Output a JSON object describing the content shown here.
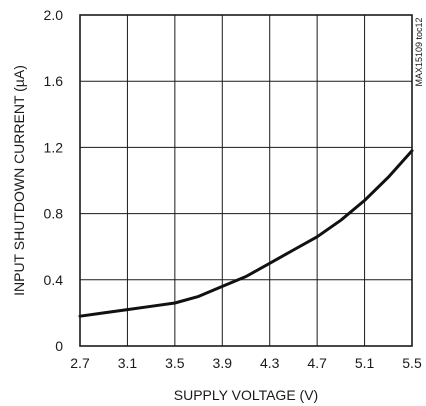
{
  "chart_data": {
    "type": "line",
    "title": "",
    "xlabel": "SUPPLY VOLTAGE (V)",
    "ylabel": "INPUT SHUTDOWN CURRENT (µA)",
    "side_note": "MAX15109 toc12",
    "xlim": [
      2.7,
      5.5
    ],
    "ylim": [
      0,
      2.0
    ],
    "x_ticks": [
      "2.7",
      "3.1",
      "3.5",
      "3.9",
      "4.3",
      "4.7",
      "5.1",
      "5.5"
    ],
    "y_ticks": [
      "0",
      "0.4",
      "0.8",
      "1.2",
      "1.6",
      "2.0"
    ],
    "grid": true,
    "series": [
      {
        "x": [
          2.7,
          2.9,
          3.1,
          3.3,
          3.5,
          3.7,
          3.9,
          4.1,
          4.3,
          4.5,
          4.7,
          4.9,
          5.1,
          5.3,
          5.5
        ],
        "y": [
          0.18,
          0.2,
          0.22,
          0.24,
          0.26,
          0.3,
          0.36,
          0.42,
          0.5,
          0.58,
          0.66,
          0.76,
          0.88,
          1.02,
          1.18
        ]
      }
    ]
  }
}
